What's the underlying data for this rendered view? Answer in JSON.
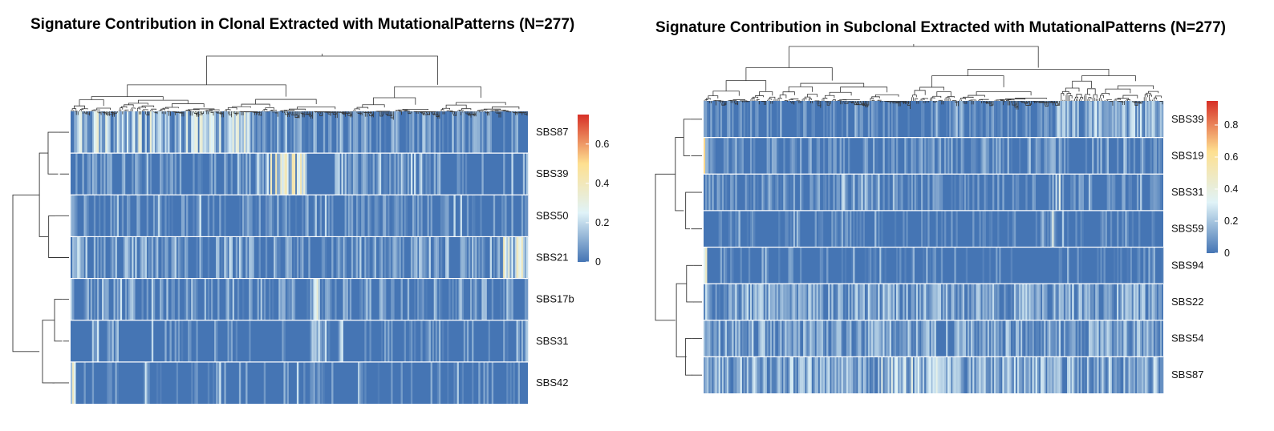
{
  "chart_data": [
    {
      "type": "heatmap",
      "title": "Signature Contribution in Clonal Extracted with MutationalPatterns (N=277)",
      "rows": [
        "SBS87",
        "SBS39",
        "SBS50",
        "SBS21",
        "SBS17b",
        "SBS31",
        "SBS42"
      ],
      "n_columns": 277,
      "color_scale": {
        "stops": [
          "#4575b4",
          "#e0f3f8",
          "#fee090",
          "#d73027"
        ],
        "range": [
          0,
          0.75
        ],
        "ticks": [
          0,
          0.2,
          0.4,
          0.6
        ],
        "tick_labels": [
          "0",
          "0.2",
          "0.4",
          "0.6"
        ]
      },
      "row_dendrogram": true,
      "column_dendrogram": true,
      "grid": false,
      "legend_position": "right"
    },
    {
      "type": "heatmap",
      "title": "Signature Contribution in Subclonal Extracted with MutationalPatterns (N=277)",
      "rows": [
        "SBS39",
        "SBS19",
        "SBS31",
        "SBS59",
        "SBS94",
        "SBS22",
        "SBS54",
        "SBS87"
      ],
      "n_columns": 277,
      "color_scale": {
        "stops": [
          "#4575b4",
          "#e0f3f8",
          "#fee090",
          "#d73027"
        ],
        "range": [
          0,
          0.95
        ],
        "ticks": [
          0,
          0.2,
          0.4,
          0.6,
          0.8
        ],
        "tick_labels": [
          "0",
          "0.2",
          "0.4",
          "0.6",
          "0.8"
        ]
      },
      "row_dendrogram": true,
      "column_dendrogram": true,
      "grid": false,
      "legend_position": "right"
    }
  ]
}
